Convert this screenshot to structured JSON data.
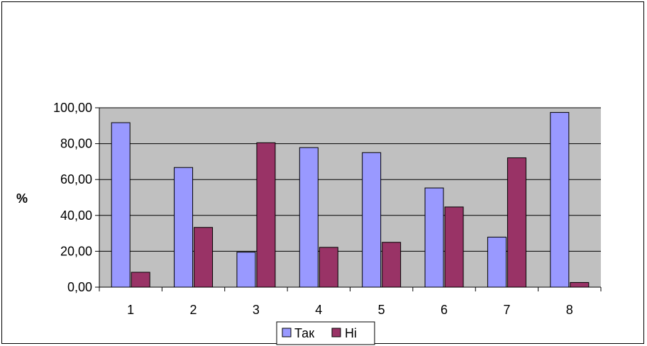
{
  "chart_data": {
    "type": "bar",
    "title": "",
    "xlabel": "",
    "ylabel": "%",
    "ylim": [
      0,
      100
    ],
    "yticks": [
      "0,00",
      "20,00",
      "40,00",
      "60,00",
      "80,00",
      "100,00"
    ],
    "ytick_values": [
      0,
      20,
      40,
      60,
      80,
      100
    ],
    "categories": [
      "1",
      "2",
      "3",
      "4",
      "5",
      "6",
      "7",
      "8"
    ],
    "series": [
      {
        "name": "Так",
        "color": "#9999ff",
        "values": [
          91.7,
          66.7,
          19.5,
          77.8,
          75.0,
          55.3,
          27.9,
          97.4
        ]
      },
      {
        "name": "Ні",
        "color": "#993366",
        "values": [
          8.3,
          33.3,
          80.5,
          22.2,
          25.0,
          44.7,
          72.1,
          2.6
        ]
      }
    ],
    "plot_background": "#c0c0c0",
    "gridlines": true,
    "legend": "bottom"
  }
}
